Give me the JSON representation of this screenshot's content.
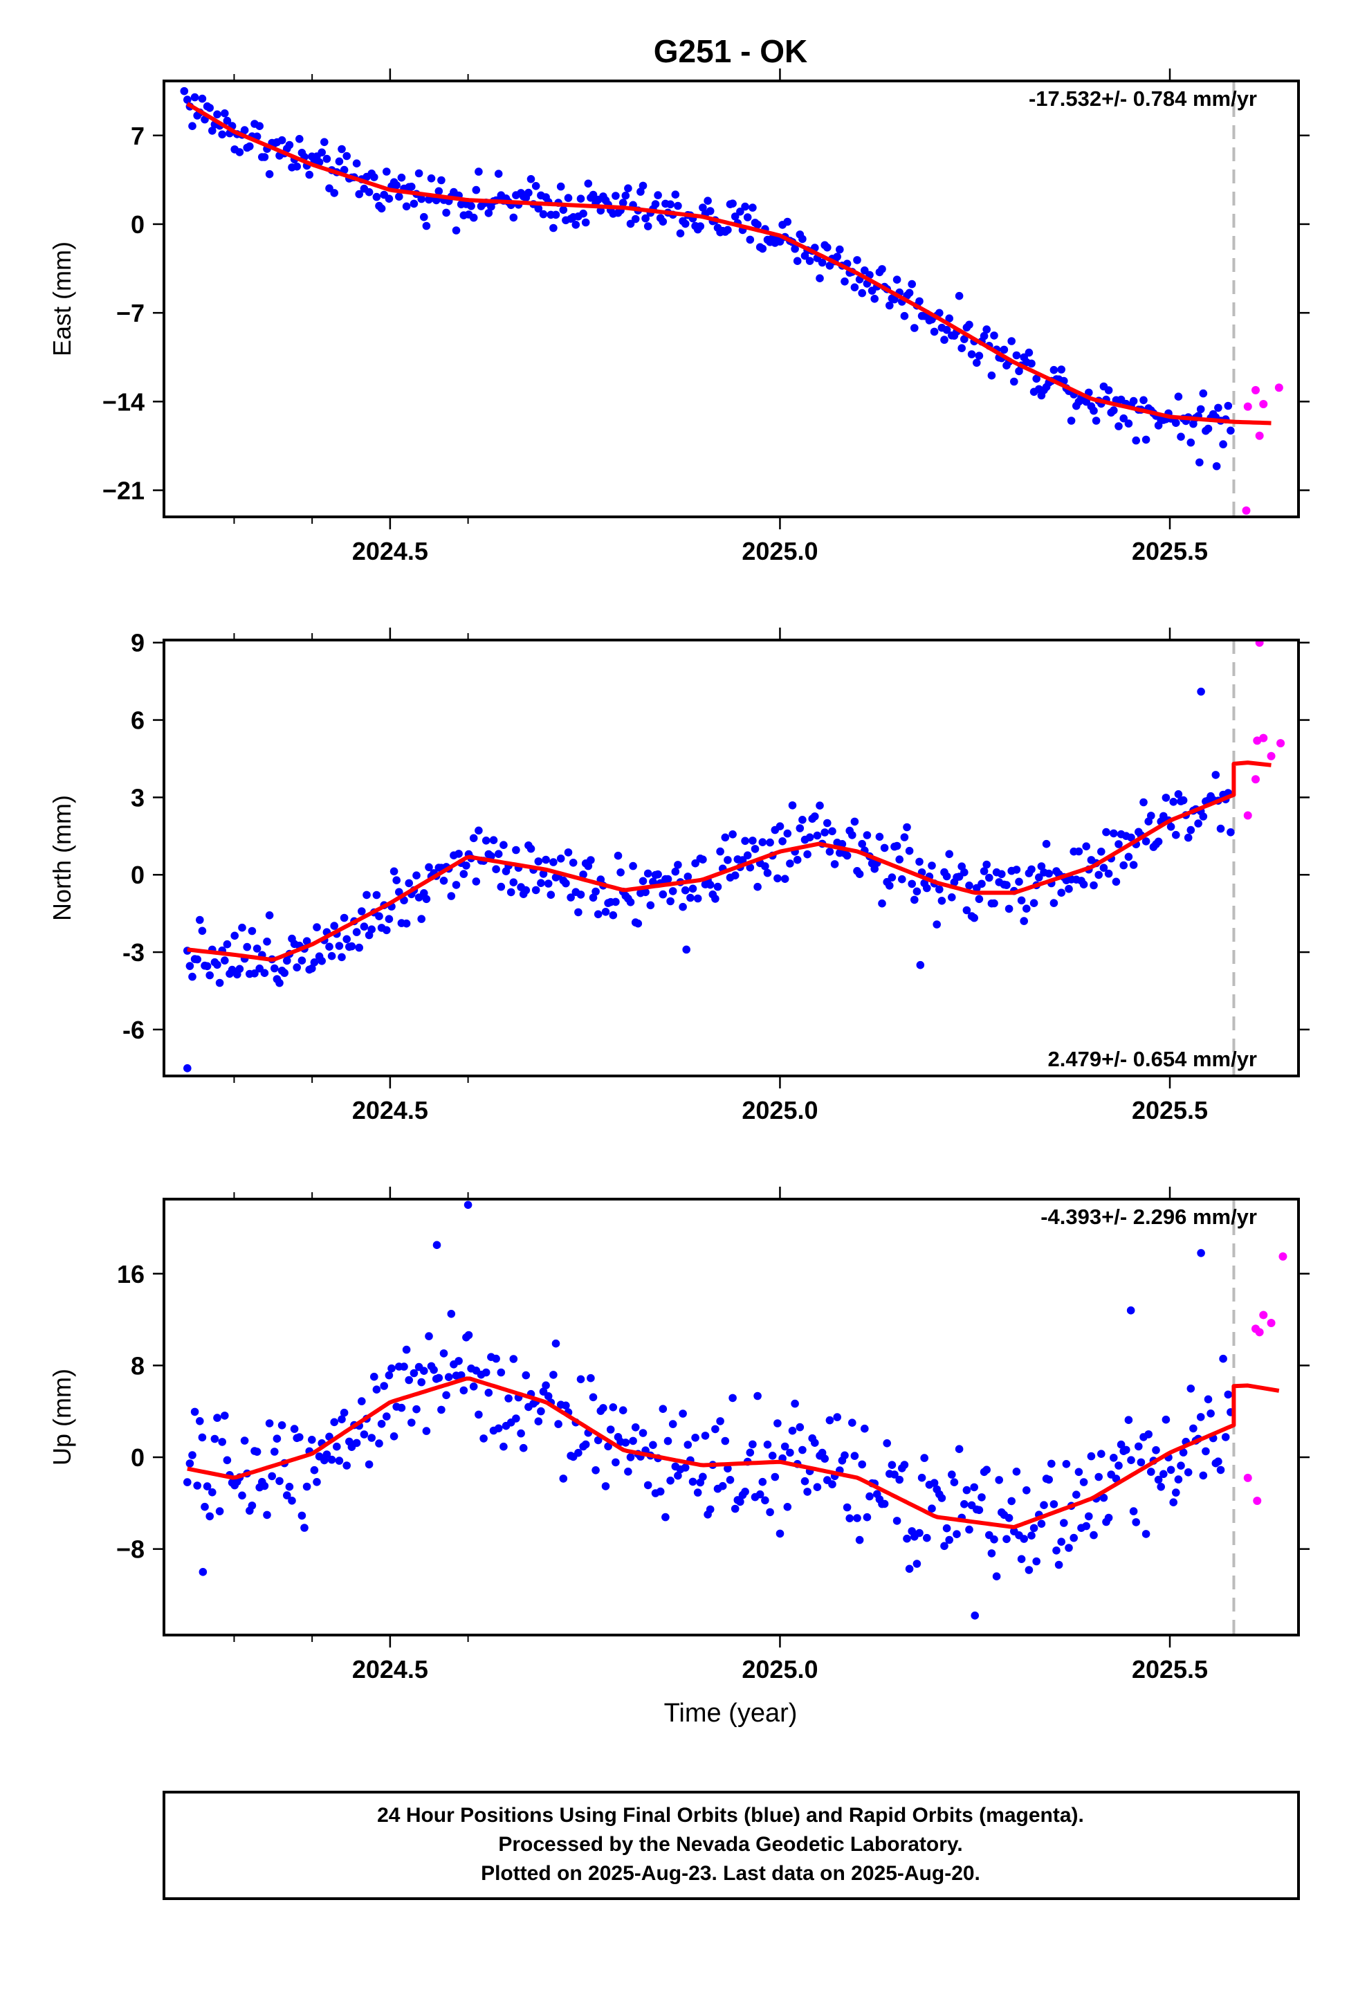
{
  "title": "G251 - OK",
  "colors": {
    "final": "#0000ff",
    "rapid": "#ff00ff",
    "model": "#ff0000",
    "marker": "#bbbbbb",
    "frame": "#000000"
  },
  "xlabel": "Time (year)",
  "footer": {
    "line1": "24 Hour Positions Using Final Orbits (blue) and Rapid Orbits (magenta).",
    "line2": "Processed by the Nevada Geodetic Laboratory.",
    "line3": "Plotted on 2025-Aug-23. Last data on 2025-Aug-20."
  },
  "chart_data": [
    {
      "type": "scatter",
      "component": "east",
      "ylabel": "East (mm)",
      "rate_label": "-17.532+/- 0.784 mm/yr",
      "rate_placement": "top-right",
      "xlim": [
        2024.21,
        2025.665
      ],
      "ylim": [
        -23.1,
        11.3
      ],
      "xticks": [
        2024.5,
        2025.0,
        2025.5
      ],
      "xtick_labels": [
        "2024.5",
        "2025.0",
        "2025.5"
      ],
      "yticks": [
        7,
        0,
        -7,
        -14,
        -21
      ],
      "ytick_labels": [
        "7",
        "0",
        "−7",
        "−14",
        "−21"
      ],
      "marker_x": 2025.582,
      "grid": false,
      "model_x": [
        2024.24,
        2024.3,
        2024.4,
        2024.5,
        2024.6,
        2024.7,
        2024.8,
        2024.9,
        2025.0,
        2025.1,
        2025.2,
        2025.3,
        2025.4,
        2025.5,
        2025.582,
        2025.63
      ],
      "model_y": [
        9.5,
        7.3,
        4.7,
        2.7,
        1.9,
        1.6,
        1.3,
        0.6,
        -0.9,
        -3.9,
        -7.3,
        -10.9,
        -13.8,
        -15.2,
        -15.6,
        -15.7
      ],
      "model_step": null,
      "trend": {
        "start": 9.5,
        "end": -15.6,
        "noise": 1.2
      },
      "rapid": [
        [
          2025.6,
          -14.4
        ],
        [
          2025.61,
          -13.1
        ],
        [
          2025.615,
          -16.7
        ],
        [
          2025.62,
          -14.2
        ],
        [
          2025.64,
          -12.9
        ],
        [
          2025.598,
          -22.6
        ]
      ],
      "outliers": [
        [
          2025.56,
          -19.1
        ],
        [
          2025.538,
          -18.8
        ],
        [
          2024.236,
          10.5
        ]
      ]
    },
    {
      "type": "scatter",
      "component": "north",
      "ylabel": "North (mm)",
      "rate_label": "2.479+/- 0.654 mm/yr",
      "rate_placement": "bottom-right",
      "xlim": [
        2024.21,
        2025.665
      ],
      "ylim": [
        -7.8,
        9.1
      ],
      "xticks": [
        2024.5,
        2025.0,
        2025.5
      ],
      "xtick_labels": [
        "2024.5",
        "2025.0",
        "2025.5"
      ],
      "yticks": [
        9,
        6,
        3,
        0,
        -3,
        -6
      ],
      "ytick_labels": [
        "9",
        "6",
        "3",
        "0",
        "-3",
        "-6"
      ],
      "marker_x": 2025.582,
      "grid": false,
      "model_x": [
        2024.24,
        2024.3,
        2024.35,
        2024.4,
        2024.5,
        2024.6,
        2024.7,
        2024.8,
        2024.9,
        2025.0,
        2025.05,
        2025.1,
        2025.2,
        2025.25,
        2025.3,
        2025.4,
        2025.5,
        2025.582
      ],
      "model_y": [
        -2.9,
        -3.1,
        -3.3,
        -2.7,
        -1.1,
        0.7,
        0.2,
        -0.6,
        -0.2,
        0.9,
        1.2,
        0.9,
        -0.3,
        -0.7,
        -0.7,
        0.3,
        2.1,
        3.1
      ],
      "model_step": {
        "x": [
          2025.582,
          2025.6,
          2025.63
        ],
        "y": [
          4.3,
          4.35,
          4.25
        ]
      },
      "trend": {
        "noise": 0.85
      },
      "rapid": [
        [
          2025.6,
          2.3
        ],
        [
          2025.61,
          3.7
        ],
        [
          2025.612,
          5.2
        ],
        [
          2025.62,
          5.3
        ],
        [
          2025.63,
          4.6
        ],
        [
          2025.642,
          5.1
        ],
        [
          2025.615,
          9.0
        ]
      ],
      "outliers": [
        [
          2024.24,
          -7.5
        ],
        [
          2025.54,
          7.1
        ],
        [
          2025.18,
          -3.5
        ],
        [
          2024.88,
          -2.9
        ]
      ]
    },
    {
      "type": "scatter",
      "component": "up",
      "ylabel": "Up (mm)",
      "rate_label": "-4.393+/- 2.296 mm/yr",
      "rate_placement": "top-right",
      "xlim": [
        2024.21,
        2025.665
      ],
      "ylim": [
        -15.5,
        22.5
      ],
      "xticks": [
        2024.5,
        2025.0,
        2025.5
      ],
      "xtick_labels": [
        "2024.5",
        "2025.0",
        "2025.5"
      ],
      "yticks": [
        16,
        8,
        0,
        -8
      ],
      "ytick_labels": [
        "16",
        "8",
        "0",
        "−8"
      ],
      "marker_x": 2025.582,
      "grid": false,
      "model_x": [
        2024.24,
        2024.3,
        2024.4,
        2024.5,
        2024.6,
        2024.7,
        2024.8,
        2024.9,
        2025.0,
        2025.1,
        2025.2,
        2025.3,
        2025.4,
        2025.5,
        2025.582
      ],
      "model_y": [
        -1.0,
        -1.8,
        0.3,
        4.8,
        6.9,
        4.8,
        0.6,
        -0.7,
        -0.4,
        -1.8,
        -5.2,
        -6.1,
        -3.6,
        0.4,
        2.8
      ],
      "model_step": {
        "x": [
          2025.582,
          2025.6,
          2025.64
        ],
        "y": [
          6.2,
          6.25,
          5.8
        ]
      },
      "trend": {
        "noise": 3.2
      },
      "rapid": [
        [
          2025.6,
          -1.8
        ],
        [
          2025.61,
          11.2
        ],
        [
          2025.615,
          10.9
        ],
        [
          2025.62,
          12.4
        ],
        [
          2025.63,
          11.7
        ],
        [
          2025.645,
          17.5
        ],
        [
          2025.612,
          -3.8
        ]
      ],
      "outliers": [
        [
          2024.6,
          22.0
        ],
        [
          2024.56,
          18.5
        ],
        [
          2025.54,
          17.8
        ],
        [
          2025.25,
          -13.8
        ],
        [
          2024.26,
          -10.0
        ],
        [
          2025.45,
          12.8
        ]
      ]
    }
  ]
}
